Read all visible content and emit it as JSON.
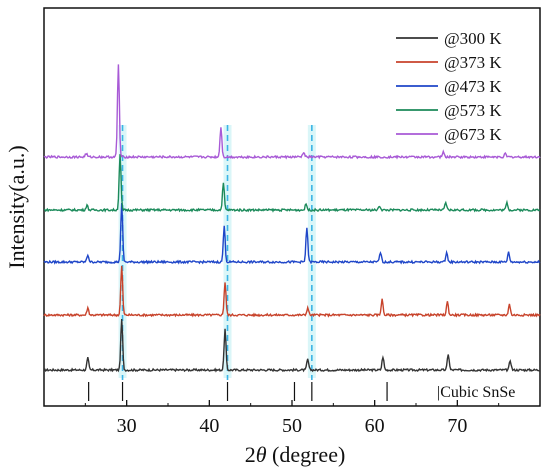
{
  "chart_data": {
    "type": "line",
    "xlabel_prefix": "2",
    "xlabel_symbol": "θ",
    "xlabel_suffix": " (degree)",
    "ylabel": "Intensity(a.u.)",
    "xlim": [
      20,
      80
    ],
    "x_ticks": [
      30,
      40,
      50,
      60,
      70
    ],
    "y_ticks_shown": false,
    "stack_order_bottom_to_top": [
      "@300 K",
      "@373 K",
      "@473 K",
      "@573 K",
      "@673 K"
    ],
    "series": [
      {
        "name": "@300 K",
        "color": "#333333",
        "peaks": [
          [
            25.3,
            0.2
          ],
          [
            29.4,
            0.85
          ],
          [
            41.9,
            0.68
          ],
          [
            51.9,
            0.18
          ],
          [
            61.0,
            0.22
          ],
          [
            68.9,
            0.27
          ],
          [
            76.4,
            0.16
          ]
        ]
      },
      {
        "name": "@373 K",
        "color": "#c8432b",
        "peaks": [
          [
            25.3,
            0.12
          ],
          [
            29.4,
            0.82
          ],
          [
            41.9,
            0.55
          ],
          [
            51.9,
            0.12
          ],
          [
            60.9,
            0.26
          ],
          [
            68.8,
            0.22
          ],
          [
            76.3,
            0.18
          ]
        ]
      },
      {
        "name": "@473 K",
        "color": "#1f46c8",
        "peaks": [
          [
            25.3,
            0.12
          ],
          [
            29.4,
            0.98
          ],
          [
            41.8,
            0.6
          ],
          [
            51.8,
            0.58
          ],
          [
            60.7,
            0.16
          ],
          [
            68.7,
            0.16
          ],
          [
            76.2,
            0.16
          ]
        ]
      },
      {
        "name": "@573 K",
        "color": "#1b8a5a",
        "peaks": [
          [
            25.2,
            0.08
          ],
          [
            29.2,
            0.92
          ],
          [
            41.7,
            0.45
          ],
          [
            51.7,
            0.1
          ],
          [
            60.6,
            0.07
          ],
          [
            68.6,
            0.12
          ],
          [
            76.0,
            0.12
          ]
        ]
      },
      {
        "name": "@673 K",
        "color": "#a85ad6",
        "peaks": [
          [
            25.1,
            0.06
          ],
          [
            29.0,
            1.55
          ],
          [
            41.4,
            0.5
          ],
          [
            51.4,
            0.08
          ],
          [
            68.3,
            0.08
          ],
          [
            75.8,
            0.05
          ]
        ]
      }
    ],
    "reference": {
      "label": "|Cubic SnSe",
      "positions": [
        25.4,
        29.5,
        42.2,
        50.3,
        52.4,
        61.5
      ]
    },
    "dashed_guides": [
      29.5,
      42.2,
      52.4
    ],
    "legend_position": "top-right"
  }
}
